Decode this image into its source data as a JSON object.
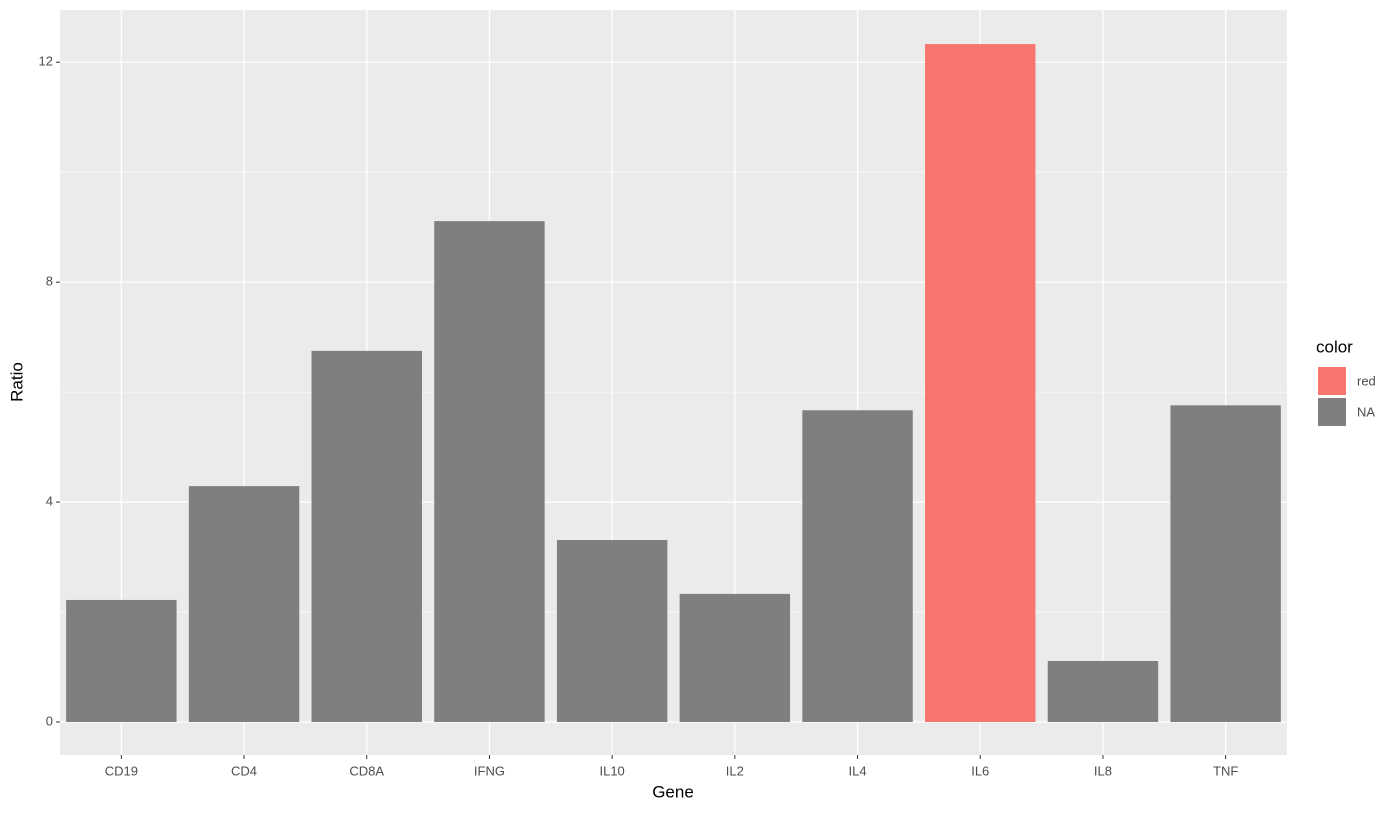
{
  "chart_data": {
    "type": "bar",
    "x_label": "Gene",
    "y_label": "Ratio",
    "categories": [
      "CD19",
      "CD4",
      "CD8A",
      "IFNG",
      "IL10",
      "IL2",
      "IL4",
      "IL6",
      "IL8",
      "TNF"
    ],
    "values": [
      2.22,
      4.29,
      6.75,
      9.11,
      3.31,
      2.33,
      5.67,
      12.33,
      1.11,
      5.76
    ],
    "bar_colors": [
      "#7F7F7F",
      "#7F7F7F",
      "#7F7F7F",
      "#7F7F7F",
      "#7F7F7F",
      "#7F7F7F",
      "#7F7F7F",
      "#F8766D",
      "#7F7F7F",
      "#7F7F7F"
    ],
    "ylim": [
      -0.6,
      12.95
    ],
    "yticks": [
      0,
      4,
      8,
      12
    ],
    "y_minor_ticks": [
      2,
      6,
      10
    ],
    "grid": true,
    "legend_title": "color",
    "legend": [
      {
        "name": "red",
        "color": "#F8766D"
      },
      {
        "name": "NA",
        "color": "#7F7F7F"
      }
    ],
    "legend_position": "right"
  }
}
